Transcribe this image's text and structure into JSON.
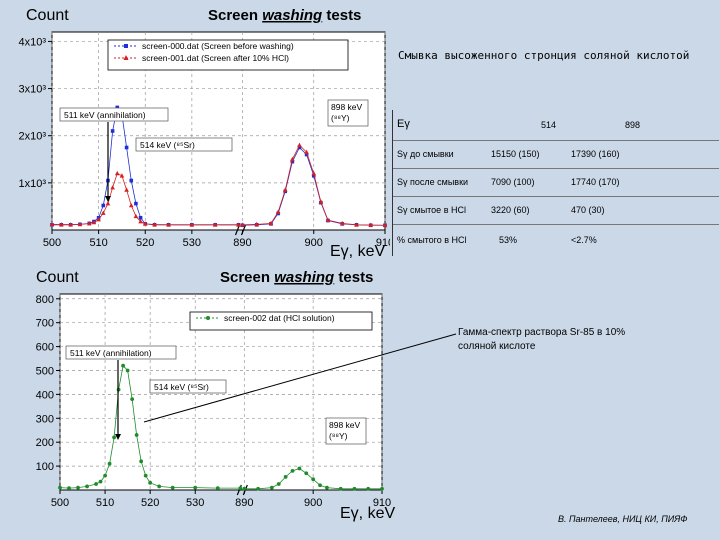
{
  "note_title": "Смывка высоженного стронция соляной кислотой",
  "table": {
    "headers": [
      "Eγ",
      "514",
      "898"
    ],
    "rows": [
      {
        "label": "Sγ до смывки",
        "v514": "15150 (150)",
        "v898": "17390 (160)"
      },
      {
        "label": "Sγ после смывки",
        "v514": "7090 (100)",
        "v898": "17740 (170)"
      },
      {
        "label": "Sγ смытое в HCl",
        "v514": "3220 (60)",
        "v898": "470 (30)"
      },
      {
        "label": "% смытого в HCl",
        "v514": "53%",
        "v898": "<2.7%"
      }
    ]
  },
  "caption": "Гамма-спектр раствора Sr-85 в 10% соляной кислоте",
  "credit": "В. Пантелеев, НИЦ КИ, ПИЯФ",
  "colors": {
    "blue": "#1f2fd6",
    "red": "#d62020",
    "green": "#1f8c2a"
  },
  "chart_data": [
    {
      "type": "scatter",
      "title_prefix": "Screen",
      "title_mid": "washing",
      "title_suffix": "tests",
      "ylabel": "Count",
      "xlabel": "Eγ, keV",
      "x_break": true,
      "x_segments": [
        [
          500,
          540
        ],
        [
          890,
          910
        ]
      ],
      "x_ticks": [
        500,
        510,
        520,
        530,
        890,
        900,
        910
      ],
      "y_tick_labels": [
        "1x10³",
        "2x10³",
        "3x10³",
        "4x10³"
      ],
      "y_tick_values": [
        1000,
        2000,
        3000,
        4000
      ],
      "ylim": [
        0,
        4200
      ],
      "series": [
        {
          "name": "screen-000.dat (Screen before washing)",
          "color": "#1f2fd6",
          "marker": "square",
          "x": [
            500,
            502,
            504,
            506,
            508,
            509,
            510,
            511,
            512,
            513,
            514,
            515,
            516,
            517,
            518,
            519,
            520,
            522,
            525,
            530,
            535,
            540,
            890,
            892,
            894,
            895,
            896,
            897,
            898,
            899,
            900,
            901,
            902,
            904,
            906,
            908,
            910
          ],
          "y": [
            110,
            110,
            110,
            120,
            140,
            180,
            260,
            520,
            1050,
            2100,
            2600,
            2450,
            1750,
            1050,
            560,
            260,
            130,
            110,
            110,
            110,
            110,
            110,
            100,
            110,
            130,
            350,
            820,
            1450,
            1750,
            1600,
            1150,
            580,
            200,
            130,
            110,
            100,
            100
          ]
        },
        {
          "name": "screen-001.dat (Screen after 10% HCl)",
          "color": "#d62020",
          "marker": "triangle",
          "x": [
            500,
            502,
            504,
            506,
            508,
            509,
            510,
            511,
            512,
            513,
            514,
            515,
            516,
            517,
            518,
            519,
            520,
            522,
            525,
            530,
            535,
            540,
            890,
            892,
            894,
            895,
            896,
            897,
            898,
            899,
            900,
            901,
            902,
            904,
            906,
            908,
            910
          ],
          "y": [
            120,
            115,
            115,
            120,
            135,
            160,
            220,
            360,
            560,
            900,
            1200,
            1150,
            850,
            520,
            290,
            180,
            130,
            115,
            110,
            110,
            110,
            110,
            110,
            120,
            140,
            380,
            850,
            1500,
            1800,
            1650,
            1200,
            600,
            210,
            140,
            110,
            105,
            100
          ]
        }
      ],
      "annotations": [
        "511 keV (annihilation)",
        "514 keV (⁸⁵Sr)",
        "898 keV",
        "(⁸⁸Y)"
      ]
    },
    {
      "type": "scatter",
      "title_prefix": "Screen",
      "title_mid": "washing",
      "title_suffix": "tests",
      "ylabel": "Count",
      "xlabel": "Eγ, keV",
      "x_break": true,
      "x_segments": [
        [
          500,
          540
        ],
        [
          890,
          910
        ]
      ],
      "x_ticks": [
        500,
        510,
        520,
        530,
        890,
        900,
        910
      ],
      "y_tick_values": [
        100,
        200,
        300,
        400,
        500,
        600,
        700,
        800
      ],
      "ylim": [
        0,
        820
      ],
      "series": [
        {
          "name": "screen-002 dat (HCl solution)",
          "color": "#1f8c2a",
          "marker": "circle",
          "x": [
            500,
            502,
            504,
            506,
            508,
            509,
            510,
            511,
            512,
            513,
            514,
            515,
            516,
            517,
            518,
            519,
            520,
            522,
            525,
            530,
            535,
            540,
            890,
            892,
            894,
            895,
            896,
            897,
            898,
            899,
            900,
            901,
            902,
            904,
            906,
            908,
            910
          ],
          "y": [
            10,
            8,
            10,
            15,
            25,
            35,
            60,
            110,
            220,
            420,
            520,
            500,
            380,
            230,
            120,
            60,
            30,
            15,
            10,
            10,
            8,
            8,
            5,
            5,
            10,
            25,
            55,
            80,
            90,
            70,
            45,
            20,
            10,
            5,
            5,
            5,
            5
          ]
        }
      ],
      "annotations": [
        "511 keV (annihilation)",
        "514 keV (⁸⁵Sr)",
        "898 keV",
        "(⁸⁸Y)"
      ]
    }
  ]
}
